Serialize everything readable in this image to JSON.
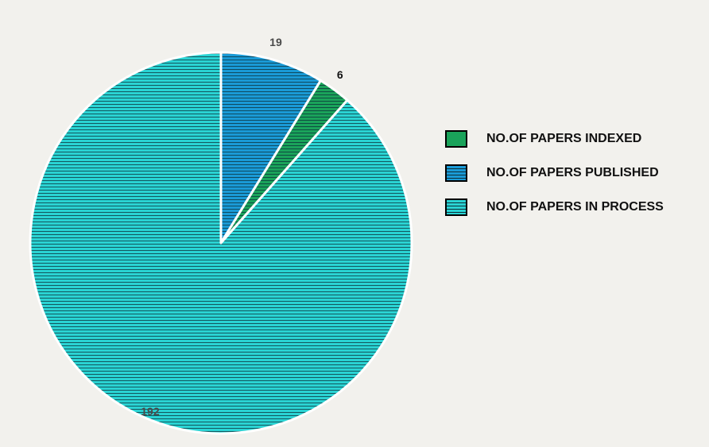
{
  "chart_data": {
    "type": "pie",
    "start_angle_deg": 0,
    "direction": "clockwise",
    "legend_position": "right",
    "title": "",
    "slices": [
      {
        "label": "NO.OF PAPERS PUBLISHED",
        "value": 19,
        "color": "#1a9ad6"
      },
      {
        "label": "NO.OF PAPERS INDEXED",
        "value": 6,
        "color": "#1aa35a"
      },
      {
        "label": "NO.OF PAPERS IN PROCESS",
        "value": 192,
        "color": "#2ad3d3"
      }
    ],
    "legend": [
      {
        "label": "NO.OF PAPERS INDEXED",
        "color": "#1aa35a"
      },
      {
        "label": "NO.OF PAPERS PUBLISHED",
        "color": "#1a9ad6"
      },
      {
        "label": "NO.OF PAPERS IN PROCESS",
        "color": "#2ad3d3"
      }
    ],
    "data_labels": [
      "19",
      "6",
      "192"
    ]
  }
}
